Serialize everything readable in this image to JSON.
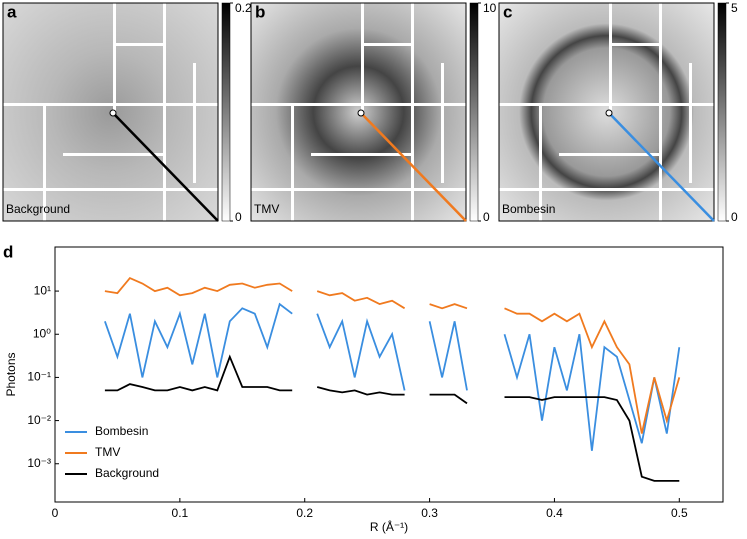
{
  "chart_data": [
    {
      "type": "image",
      "panel": "a",
      "label": "Background",
      "clim": [
        0,
        0.2
      ],
      "cticks": [
        0,
        0.2
      ],
      "line_color": "#000000"
    },
    {
      "type": "image",
      "panel": "b",
      "label": "TMV",
      "clim": [
        0,
        10
      ],
      "cticks": [
        0,
        10
      ],
      "line_color": "#f07a1f"
    },
    {
      "type": "image",
      "panel": "c",
      "label": "Bombesin",
      "clim": [
        0,
        5
      ],
      "cticks": [
        0,
        5
      ],
      "line_color": "#3a8ee0"
    },
    {
      "type": "line",
      "panel": "d",
      "xlabel": "R (Å⁻¹)",
      "ylabel": "Photons",
      "log_y": true,
      "legend": "lower left",
      "xlim": [
        0,
        0.535
      ],
      "xticks": [
        0,
        0.1,
        0.2,
        0.3,
        0.4,
        0.5
      ],
      "ylim": [
        0.00013,
        105
      ],
      "yticks": [
        {
          "value": 0.001,
          "label": "10⁻³"
        },
        {
          "value": 0.01,
          "label": "10⁻²"
        },
        {
          "value": 0.1,
          "label": "10⁻¹"
        },
        {
          "value": 1,
          "label": "10⁰"
        },
        {
          "value": 10,
          "label": "10¹"
        }
      ],
      "x": [
        0.04,
        0.05,
        0.06,
        0.07,
        0.08,
        0.09,
        0.1,
        0.11,
        0.12,
        0.13,
        0.14,
        0.15,
        0.16,
        0.17,
        0.18,
        0.19,
        0.2,
        0.21,
        0.22,
        0.23,
        0.24,
        0.25,
        0.26,
        0.27,
        0.28,
        0.29,
        0.3,
        0.31,
        0.32,
        0.33,
        0.34,
        0.35,
        0.36,
        0.37,
        0.38,
        0.39,
        0.4,
        0.41,
        0.42,
        0.43,
        0.44,
        0.45,
        0.46,
        0.47,
        0.48,
        0.49,
        0.5
      ],
      "series": [
        {
          "name": "Bombesin",
          "color": "#3a8ee0",
          "values": [
            2,
            0.3,
            3,
            0.1,
            2,
            0.5,
            3,
            0.2,
            3,
            0.1,
            2,
            4,
            3,
            0.5,
            5,
            3,
            null,
            3,
            0.5,
            2,
            0.1,
            2,
            0.3,
            1,
            0.05,
            null,
            2,
            0.1,
            2,
            0.05,
            null,
            null,
            1,
            0.1,
            1,
            0.01,
            0.5,
            0.05,
            1,
            0.002,
            0.5,
            0.3,
            0.03,
            0.003,
            0.1,
            0.005,
            0.5
          ]
        },
        {
          "name": "TMV",
          "color": "#f07a1f",
          "values": [
            10,
            9,
            20,
            15,
            10,
            12,
            8,
            9,
            12,
            10,
            14,
            15,
            12,
            14,
            15,
            10,
            null,
            10,
            8,
            9,
            6,
            7,
            5,
            6,
            4,
            null,
            5,
            4,
            5,
            4,
            null,
            null,
            4,
            3,
            3,
            2,
            3,
            2,
            3,
            0.5,
            2,
            0.5,
            0.2,
            0.005,
            0.1,
            0.01,
            0.1
          ]
        },
        {
          "name": "Background",
          "color": "#000000",
          "values": [
            0.05,
            0.05,
            0.07,
            0.06,
            0.05,
            0.05,
            0.06,
            0.05,
            0.06,
            0.05,
            0.3,
            0.06,
            0.06,
            0.06,
            0.05,
            0.05,
            null,
            0.06,
            0.05,
            0.045,
            0.05,
            0.04,
            0.045,
            0.04,
            0.04,
            null,
            0.04,
            0.04,
            0.04,
            0.025,
            null,
            null,
            0.035,
            0.035,
            0.035,
            0.03,
            0.035,
            0.035,
            0.035,
            0.035,
            0.035,
            0.03,
            0.01,
            0.0005,
            0.0004,
            0.0004,
            0.0004
          ]
        }
      ]
    }
  ]
}
